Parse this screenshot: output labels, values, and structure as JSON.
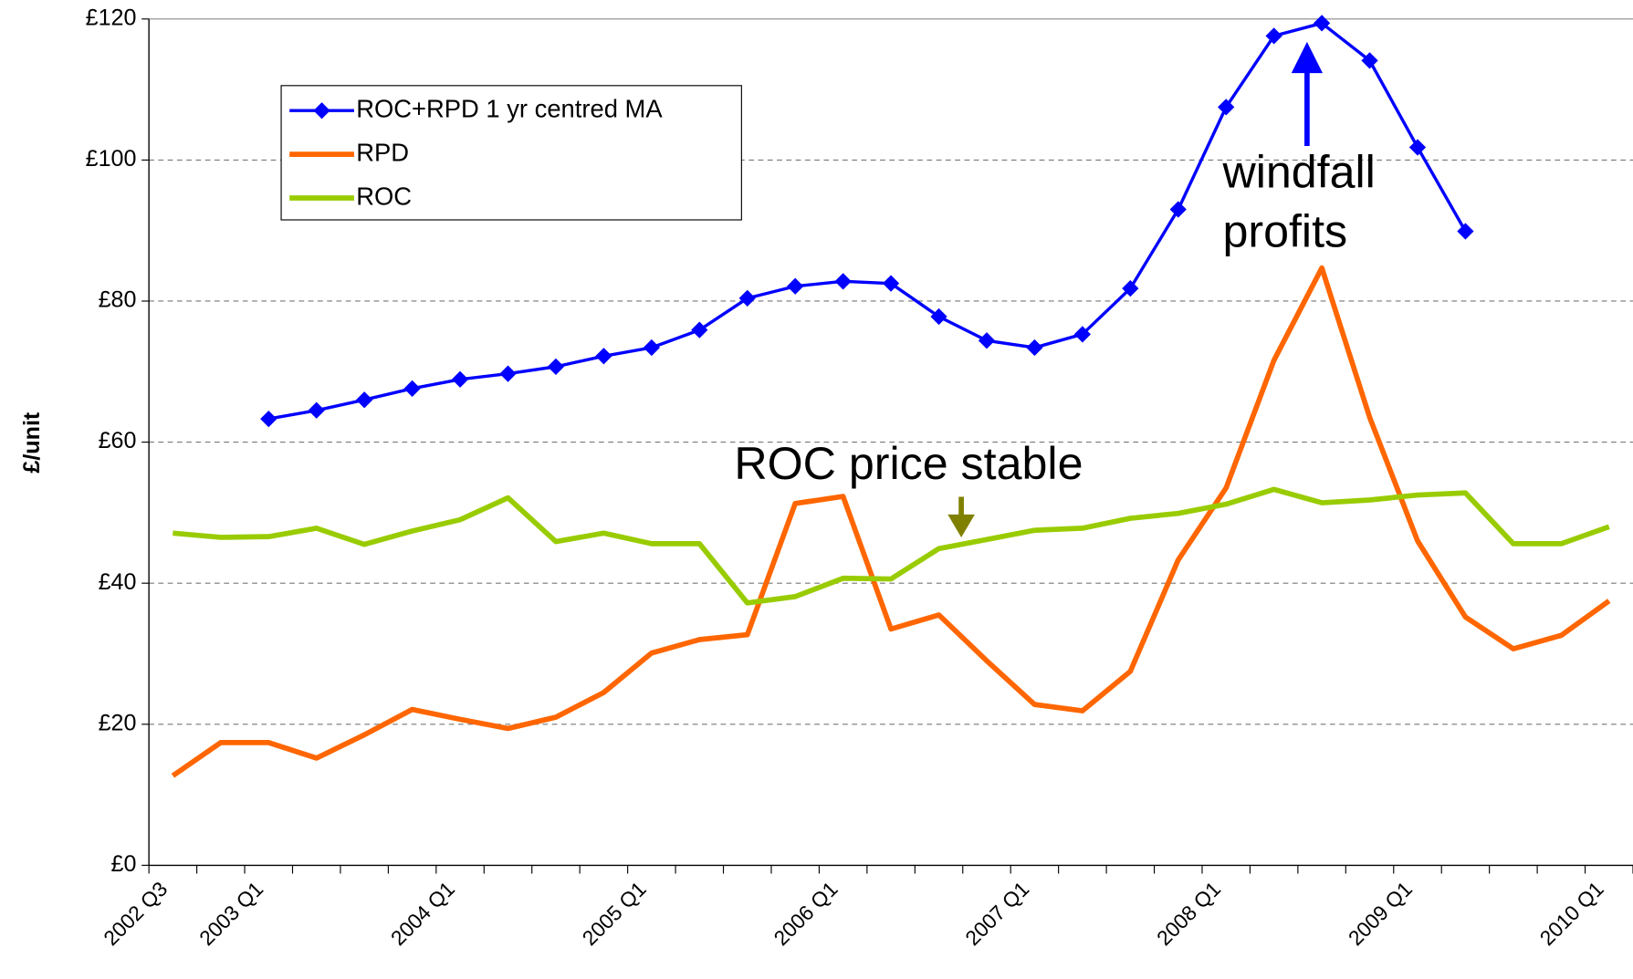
{
  "chart_data": {
    "type": "line",
    "y_label": "£/unit",
    "categories": [
      "2002 Q3",
      null,
      "2003 Q1",
      null,
      null,
      null,
      "2004 Q1",
      null,
      null,
      null,
      "2005 Q1",
      null,
      null,
      null,
      "2006 Q1",
      null,
      null,
      null,
      "2007 Q1",
      null,
      null,
      null,
      "2008 Q1",
      null,
      null,
      null,
      "2009 Q1",
      null,
      null,
      null,
      "2010 Q1"
    ],
    "series": [
      {
        "name": "ROC+RPD 1 yr centred MA",
        "color": "#0000ff",
        "marker": "diamond",
        "values": [
          null,
          null,
          63.3,
          64.5,
          66.0,
          67.6,
          68.9,
          69.7,
          70.7,
          72.2,
          73.4,
          75.9,
          80.4,
          82.1,
          82.8,
          82.5,
          77.8,
          74.4,
          73.4,
          75.3,
          81.8,
          93.0,
          107.5,
          117.6,
          119.4,
          114.1,
          101.8,
          89.9,
          null,
          null,
          null
        ]
      },
      {
        "name": "RPD",
        "color": "#ff6600",
        "values": [
          12.7,
          17.4,
          17.4,
          15.2,
          18.5,
          22.1,
          20.7,
          19.4,
          21.0,
          24.5,
          30.1,
          32.0,
          32.7,
          51.3,
          52.3,
          33.5,
          35.5,
          29.0,
          22.8,
          21.9,
          27.5,
          43.3,
          53.5,
          71.6,
          84.7,
          63.5,
          46.0,
          35.2,
          30.7,
          32.6,
          37.5
        ]
      },
      {
        "name": "ROC",
        "color": "#99cc00",
        "values": [
          47.1,
          46.5,
          46.6,
          47.8,
          45.5,
          47.4,
          49.0,
          52.1,
          45.9,
          47.1,
          45.6,
          45.6,
          37.2,
          38.1,
          40.7,
          40.6,
          44.9,
          46.2,
          47.5,
          47.8,
          49.2,
          49.9,
          51.2,
          53.3,
          51.4,
          51.8,
          52.5,
          52.8,
          45.6,
          45.6,
          48.0
        ]
      }
    ],
    "ylim": [
      0,
      120
    ],
    "yticks": [
      {
        "value": 0,
        "label": "£0"
      },
      {
        "value": 20,
        "label": "£20"
      },
      {
        "value": 40,
        "label": "£40"
      },
      {
        "value": 60,
        "label": "£60"
      },
      {
        "value": 80,
        "label": "£80"
      },
      {
        "value": 100,
        "label": "£100"
      },
      {
        "value": 120,
        "label": "£120"
      }
    ],
    "grid": true,
    "legend": "upper left",
    "annotations": [
      {
        "lines": [
          "ROC price stable"
        ],
        "color": "#808000"
      },
      {
        "lines": [
          "windfall",
          "profits"
        ],
        "color": "#0000ff"
      }
    ]
  }
}
